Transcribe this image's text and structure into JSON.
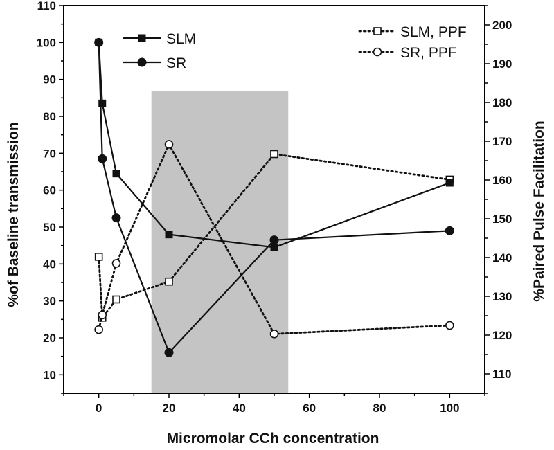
{
  "chart_data": {
    "type": "line",
    "xlabel": "Micromolar CCh concentration",
    "ylabel_left": "%of Baseline transmission",
    "ylabel_right": "%Paired Pulse Facilitation",
    "xlim": [
      -10,
      110
    ],
    "ylim_left": [
      5,
      110
    ],
    "ylim_right": [
      105,
      205
    ],
    "x_ticks": [
      "0",
      "20",
      "40",
      "60",
      "80",
      "100"
    ],
    "y_ticks_left": [
      "10",
      "20",
      "30",
      "40",
      "50",
      "60",
      "70",
      "80",
      "90",
      "100",
      "110"
    ],
    "y_ticks_right": [
      "110",
      "120",
      "130",
      "140",
      "150",
      "160",
      "170",
      "180",
      "190",
      "200"
    ],
    "shaded_region": {
      "x_range": [
        15,
        54
      ]
    },
    "series": [
      {
        "name": "SLM",
        "axis": "left",
        "style": "solid",
        "marker": "filled-square",
        "x": [
          0,
          1,
          5,
          20,
          50,
          100
        ],
        "y": [
          100,
          83.5,
          64.5,
          48,
          44.5,
          62
        ]
      },
      {
        "name": "SR",
        "axis": "left",
        "style": "solid",
        "marker": "filled-circle",
        "x": [
          0,
          1,
          5,
          20,
          50,
          100
        ],
        "y": [
          100,
          68.5,
          52.5,
          16,
          46.5,
          49
        ]
      },
      {
        "name": "SLM, PPF",
        "axis": "right",
        "style": "dotted",
        "marker": "open-square",
        "x": [
          0,
          1,
          5,
          20,
          50,
          100
        ],
        "y": [
          140.2,
          124.5,
          129.2,
          133.8,
          166.7,
          160.1
        ]
      },
      {
        "name": "SR, PPF",
        "axis": "right",
        "style": "dotted",
        "marker": "open-circle",
        "x": [
          0,
          1,
          5,
          20,
          50,
          100
        ],
        "y": [
          121.4,
          125.2,
          138.5,
          169.2,
          120.3,
          122.5
        ]
      }
    ],
    "legend": {
      "left_placement": "top-left",
      "right_placement": "top-right"
    }
  }
}
